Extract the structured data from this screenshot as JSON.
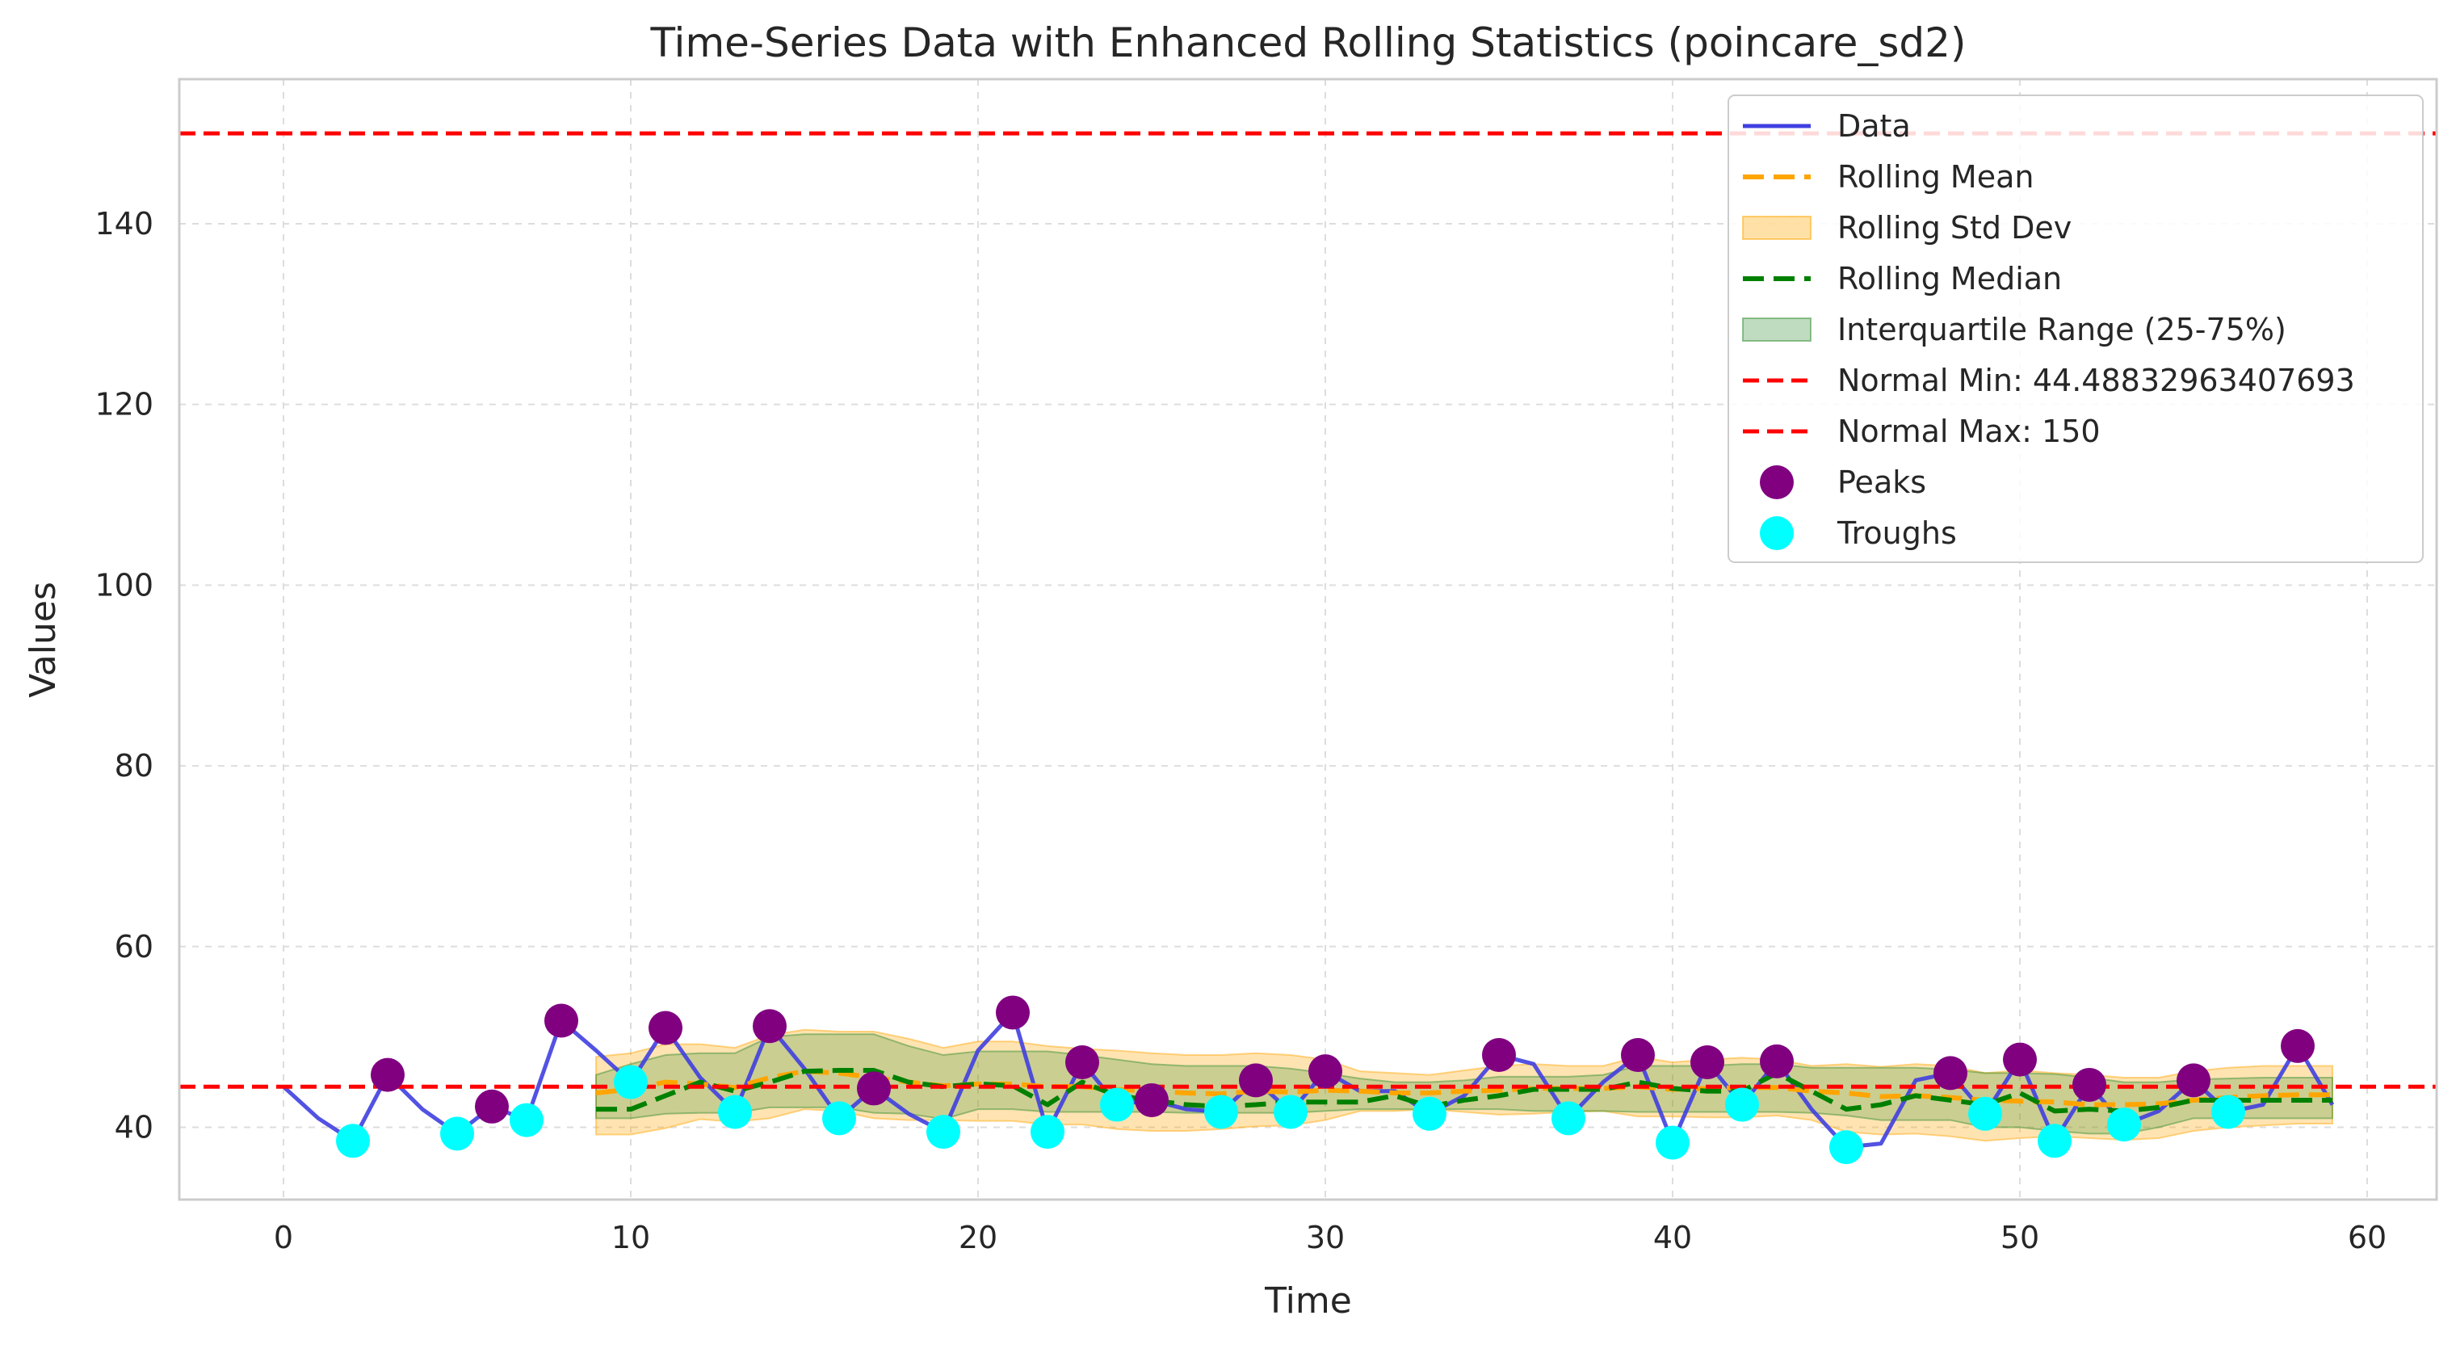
{
  "chart_data": {
    "type": "line",
    "title": "Time-Series Data with Enhanced Rolling Statistics (poincare_sd2)",
    "xlabel": "Time",
    "ylabel": "Values",
    "xlim": [
      -3,
      62
    ],
    "ylim": [
      32,
      156
    ],
    "x_ticks": [
      0,
      10,
      20,
      30,
      40,
      50,
      60
    ],
    "y_ticks": [
      40,
      60,
      80,
      100,
      120,
      140
    ],
    "grid": true,
    "legend_position": "top-right",
    "colors": {
      "data": "#3f3fe0",
      "rolling_mean": "#ffa500",
      "rolling_std": "#ffa500",
      "rolling_median": "#008000",
      "iqr": "#2e8b2e",
      "normal_line": "#ff0000",
      "peaks": "#800080",
      "troughs": "#00ffff"
    },
    "legend": [
      {
        "key": "data",
        "label": "Data"
      },
      {
        "key": "mean",
        "label": "Rolling Mean"
      },
      {
        "key": "std",
        "label": "Rolling Std Dev"
      },
      {
        "key": "median",
        "label": "Rolling Median"
      },
      {
        "key": "iqr",
        "label": "Interquartile Range (25-75%)"
      },
      {
        "key": "min",
        "label": "Normal Min: 44.48832963407693"
      },
      {
        "key": "max",
        "label": "Normal Max: 150"
      },
      {
        "key": "peaks",
        "label": "Peaks"
      },
      {
        "key": "troughs",
        "label": "Troughs"
      }
    ],
    "normal_min": 44.48832963407693,
    "normal_max": 150,
    "data": {
      "x": [
        0,
        1,
        2,
        3,
        4,
        5,
        6,
        7,
        8,
        9,
        10,
        11,
        12,
        13,
        14,
        15,
        16,
        17,
        18,
        19,
        20,
        21,
        22,
        23,
        24,
        25,
        26,
        27,
        28,
        29,
        30,
        31,
        32,
        33,
        34,
        35,
        36,
        37,
        38,
        39,
        40,
        41,
        42,
        43,
        44,
        45,
        46,
        47,
        48,
        49,
        50,
        51,
        52,
        53,
        54,
        55,
        56,
        57,
        58,
        59
      ],
      "y": [
        44.5,
        41.0,
        38.5,
        45.8,
        42.0,
        39.3,
        42.3,
        40.8,
        51.8,
        48.5,
        45.0,
        51.0,
        45.5,
        41.7,
        51.2,
        46.5,
        41.0,
        44.3,
        41.5,
        39.5,
        48.5,
        52.7,
        39.5,
        47.2,
        42.5,
        43.0,
        42.0,
        41.7,
        45.2,
        41.7,
        46.2,
        44.0,
        44.0,
        41.5,
        43.5,
        48.0,
        47.0,
        41.0,
        45.0,
        48.0,
        38.3,
        47.2,
        42.5,
        47.3,
        42.0,
        37.8,
        38.2,
        45.2,
        46.0,
        41.5,
        47.5,
        38.5,
        44.7,
        40.3,
        41.8,
        45.2,
        41.7,
        42.5,
        49.0,
        42.5
      ]
    },
    "rolling": {
      "x": [
        9,
        10,
        11,
        12,
        13,
        14,
        15,
        16,
        17,
        18,
        19,
        20,
        21,
        22,
        23,
        24,
        25,
        26,
        27,
        28,
        29,
        30,
        31,
        32,
        33,
        34,
        35,
        36,
        37,
        38,
        39,
        40,
        41,
        42,
        43,
        44,
        45,
        46,
        47,
        48,
        49,
        50,
        51,
        52,
        53,
        54,
        55,
        56,
        57,
        58,
        59
      ],
      "mean": [
        43.8,
        44.2,
        45.0,
        44.8,
        44.4,
        45.5,
        46.2,
        46.0,
        45.5,
        45.0,
        44.6,
        44.8,
        44.8,
        44.5,
        44.5,
        44.2,
        44.0,
        43.8,
        43.7,
        44.0,
        43.9,
        44.1,
        44.0,
        43.8,
        43.8,
        44.0,
        44.1,
        44.3,
        44.3,
        44.3,
        44.5,
        44.2,
        44.3,
        44.4,
        44.4,
        44.0,
        43.8,
        43.4,
        43.5,
        43.3,
        43.0,
        42.9,
        42.8,
        42.5,
        42.5,
        42.6,
        43.0,
        43.3,
        43.5,
        43.6,
        43.6
      ],
      "std_upper": [
        47.8,
        48.2,
        49.2,
        49.2,
        48.8,
        50.2,
        50.8,
        50.6,
        50.6,
        49.8,
        48.8,
        49.5,
        49.5,
        49.0,
        48.7,
        48.5,
        48.2,
        48.0,
        48.0,
        48.2,
        48.0,
        47.5,
        46.2,
        46.0,
        45.8,
        46.3,
        46.8,
        47.0,
        46.8,
        46.8,
        47.8,
        47.2,
        47.5,
        47.7,
        47.5,
        46.8,
        47.0,
        46.7,
        47.0,
        46.8,
        46.0,
        46.3,
        46.0,
        45.8,
        45.5,
        45.5,
        46.2,
        46.6,
        46.8,
        46.8,
        46.8
      ],
      "std_lower": [
        39.2,
        39.2,
        39.9,
        40.9,
        40.6,
        41.0,
        42.0,
        41.8,
        41.0,
        40.8,
        40.8,
        40.7,
        40.7,
        40.3,
        40.3,
        39.8,
        39.6,
        39.6,
        39.8,
        40.1,
        40.2,
        40.8,
        41.8,
        41.8,
        42.0,
        41.7,
        41.4,
        41.5,
        41.7,
        41.8,
        41.2,
        41.2,
        41.1,
        41.1,
        41.3,
        40.8,
        39.5,
        39.2,
        39.3,
        39.0,
        38.5,
        38.8,
        39.0,
        38.8,
        38.6,
        38.8,
        39.6,
        40.0,
        40.2,
        40.4,
        40.4
      ],
      "median": [
        42.0,
        42.0,
        43.5,
        45.0,
        44.0,
        45.0,
        46.2,
        46.3,
        46.3,
        45.0,
        44.5,
        44.8,
        44.6,
        42.5,
        45.0,
        43.5,
        43.0,
        42.5,
        42.3,
        42.5,
        42.8,
        42.8,
        42.8,
        43.5,
        42.3,
        43.0,
        43.5,
        44.2,
        44.2,
        44.2,
        45.0,
        44.3,
        44.0,
        44.0,
        46.0,
        44.0,
        42.0,
        42.5,
        43.5,
        43.0,
        42.5,
        43.8,
        41.8,
        42.0,
        41.8,
        42.2,
        43.0,
        43.0,
        43.0,
        43.0,
        43.0
      ],
      "q25": [
        41.0,
        41.0,
        41.5,
        41.6,
        41.6,
        42.2,
        42.2,
        42.2,
        41.6,
        41.5,
        40.9,
        42.0,
        42.0,
        41.7,
        41.7,
        41.7,
        41.7,
        41.6,
        41.6,
        41.6,
        41.6,
        41.8,
        42.0,
        42.0,
        42.0,
        42.0,
        42.0,
        41.8,
        41.8,
        41.8,
        41.7,
        41.7,
        41.7,
        41.7,
        41.7,
        41.6,
        41.3,
        40.8,
        40.8,
        40.8,
        40.0,
        40.0,
        39.6,
        39.3,
        39.3,
        40.0,
        41.0,
        41.0,
        41.0,
        41.0,
        41.0
      ],
      "q75": [
        45.8,
        47.0,
        48.0,
        48.2,
        48.2,
        50.0,
        50.3,
        50.3,
        50.3,
        49.0,
        48.0,
        48.4,
        48.4,
        48.4,
        48.0,
        47.5,
        47.0,
        46.8,
        46.8,
        46.8,
        46.5,
        46.0,
        45.4,
        45.0,
        45.0,
        45.2,
        45.6,
        45.6,
        45.6,
        45.8,
        46.8,
        46.8,
        46.8,
        47.0,
        47.0,
        46.6,
        46.6,
        46.6,
        46.6,
        46.4,
        46.0,
        46.0,
        45.9,
        45.5,
        45.0,
        45.0,
        45.3,
        45.4,
        45.5,
        45.5,
        45.5
      ]
    },
    "peaks": {
      "x": [
        3,
        6,
        8,
        11,
        14,
        17,
        21,
        23,
        25,
        28,
        30,
        35,
        39,
        41,
        43,
        48,
        50,
        52,
        55,
        58
      ],
      "y": [
        45.8,
        42.3,
        51.8,
        51.0,
        51.2,
        44.3,
        52.7,
        47.2,
        43.0,
        45.2,
        46.2,
        48.0,
        48.0,
        47.2,
        47.3,
        46.0,
        47.5,
        44.7,
        45.2,
        49.0
      ]
    },
    "troughs": {
      "x": [
        2,
        5,
        7,
        10,
        13,
        16,
        19,
        22,
        24,
        27,
        29,
        33,
        37,
        40,
        42,
        45,
        49,
        51,
        53,
        56
      ],
      "y": [
        38.5,
        39.3,
        40.8,
        45.0,
        41.7,
        41.0,
        39.5,
        39.5,
        42.5,
        41.7,
        41.7,
        41.5,
        41.0,
        38.3,
        42.5,
        37.8,
        41.5,
        38.5,
        40.3,
        41.7
      ]
    }
  }
}
